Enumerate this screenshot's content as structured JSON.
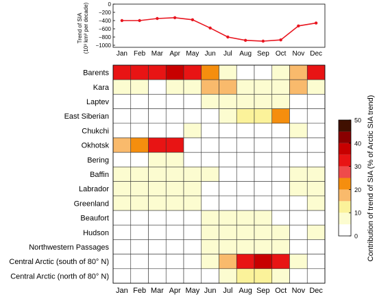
{
  "chart_data": [
    {
      "type": "line",
      "ylabel_line1": "Trend of SIA",
      "ylabel_line2": "(10³ km² per decade)",
      "categories": [
        "Jan",
        "Feb",
        "Mar",
        "Apr",
        "May",
        "Jun",
        "Jul",
        "Aug",
        "Sep",
        "Oct",
        "Nov",
        "Dec"
      ],
      "yticks": [
        "0",
        "−200",
        "−400",
        "−600",
        "−800",
        "−1000"
      ],
      "ylim": [
        -1050,
        0
      ],
      "series": [
        {
          "values": [
            -400,
            -400,
            -350,
            -330,
            -380,
            -580,
            -800,
            -880,
            -900,
            -870,
            -530,
            -460
          ],
          "color": "#e8151f"
        }
      ],
      "grid": false
    },
    {
      "type": "heatmap",
      "categories": [
        "Jan",
        "Feb",
        "Mar",
        "Apr",
        "May",
        "Jun",
        "Jul",
        "Aug",
        "Sep",
        "Oct",
        "Nov",
        "Dec"
      ],
      "rows": [
        "Barents",
        "Kara",
        "Laptev",
        "East Siberian",
        "Chukchi",
        "Okhotsk",
        "Bering",
        "Baffin",
        "Labrador",
        "Greenland",
        "Beaufort",
        "Hudson",
        "Northwestern Passages",
        "Central Arctic (south of 80° N)",
        "Central Arctic (north of 80° N)"
      ],
      "values": [
        [
          32,
          32,
          33,
          38,
          33,
          22,
          8,
          0,
          0,
          8,
          18,
          32
        ],
        [
          8,
          8,
          0,
          8,
          8,
          18,
          17,
          8,
          8,
          8,
          18,
          8
        ],
        [
          0,
          0,
          0,
          0,
          0,
          8,
          8,
          8,
          8,
          8,
          0,
          0
        ],
        [
          0,
          0,
          0,
          0,
          0,
          0,
          8,
          12,
          12,
          22,
          0,
          0
        ],
        [
          0,
          0,
          0,
          0,
          8,
          0,
          0,
          0,
          0,
          0,
          8,
          0
        ],
        [
          18,
          22,
          32,
          32,
          0,
          0,
          0,
          0,
          0,
          0,
          0,
          0
        ],
        [
          0,
          0,
          8,
          8,
          0,
          0,
          0,
          0,
          0,
          0,
          0,
          0
        ],
        [
          8,
          8,
          8,
          8,
          8,
          8,
          0,
          0,
          0,
          0,
          8,
          8
        ],
        [
          8,
          8,
          8,
          8,
          8,
          0,
          0,
          0,
          0,
          0,
          8,
          8
        ],
        [
          8,
          8,
          8,
          8,
          8,
          0,
          0,
          0,
          0,
          0,
          0,
          8
        ],
        [
          0,
          0,
          0,
          0,
          0,
          8,
          8,
          8,
          8,
          0,
          0,
          0
        ],
        [
          0,
          0,
          0,
          0,
          0,
          8,
          8,
          8,
          8,
          8,
          0,
          8
        ],
        [
          0,
          0,
          0,
          0,
          0,
          8,
          8,
          8,
          8,
          8,
          0,
          0
        ],
        [
          0,
          0,
          0,
          0,
          0,
          8,
          18,
          33,
          38,
          32,
          8,
          0
        ],
        [
          0,
          0,
          0,
          0,
          0,
          0,
          8,
          12,
          12,
          8,
          0,
          0
        ]
      ],
      "colorbar": {
        "label": "Contribution of trend of SIA (% of Arctic SIA trend)",
        "ticks": [
          "0",
          "10",
          "20",
          "30",
          "40",
          "50"
        ],
        "range": [
          0,
          50
        ],
        "bands": [
          {
            "from": 0,
            "to": 5,
            "color": "#ffffff"
          },
          {
            "from": 5,
            "to": 10,
            "color": "#fcfcd0"
          },
          {
            "from": 10,
            "to": 15,
            "color": "#fbf29a"
          },
          {
            "from": 15,
            "to": 20,
            "color": "#f9ba6c"
          },
          {
            "from": 20,
            "to": 25,
            "color": "#f58e0e"
          },
          {
            "from": 25,
            "to": 30,
            "color": "#ef4b4b"
          },
          {
            "from": 30,
            "to": 35,
            "color": "#e81414"
          },
          {
            "from": 35,
            "to": 40,
            "color": "#c80000"
          },
          {
            "from": 40,
            "to": 45,
            "color": "#8a0000"
          },
          {
            "from": 45,
            "to": 50,
            "color": "#401000"
          }
        ]
      }
    }
  ]
}
